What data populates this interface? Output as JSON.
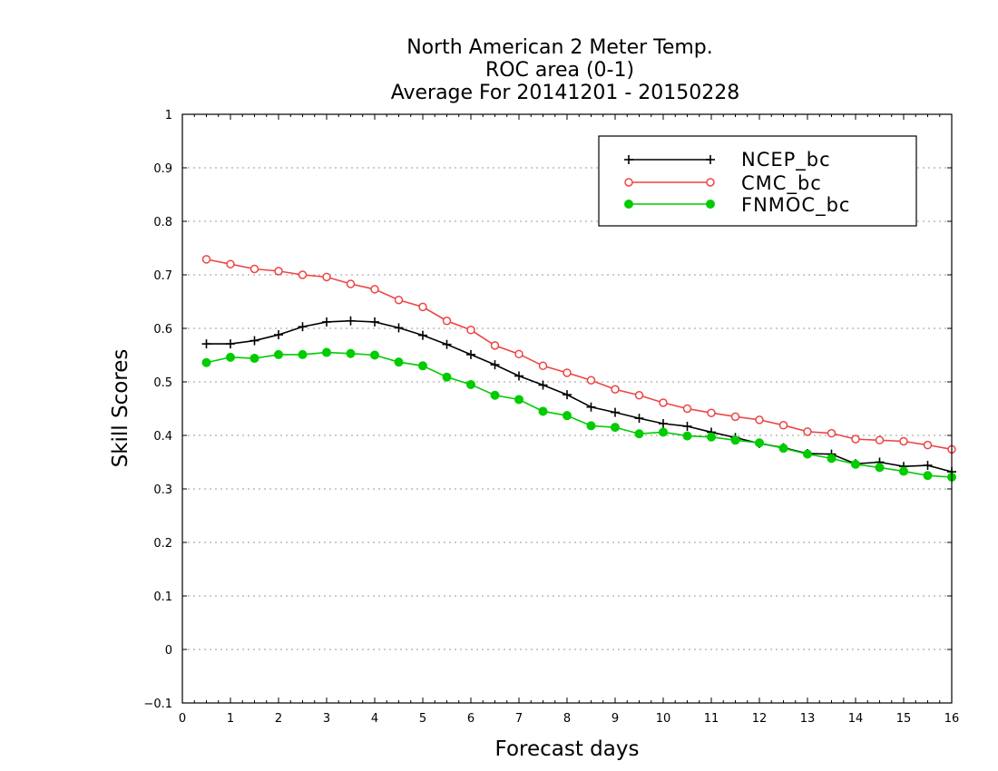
{
  "chart_data": {
    "type": "line",
    "title_lines": [
      "North American 2 Meter Temp.",
      "ROC area (0-1)",
      "Average For 20141201 - 20150228"
    ],
    "xlabel": "Forecast days",
    "ylabel": "Skill Scores",
    "xlim": [
      0,
      16
    ],
    "ylim": [
      -0.1,
      1
    ],
    "xticks": [
      "0",
      "1",
      "2",
      "3",
      "4",
      "5",
      "6",
      "7",
      "8",
      "9",
      "10",
      "11",
      "12",
      "13",
      "14",
      "15",
      "16"
    ],
    "yticks": [
      "−0.1",
      "0",
      "0.1",
      "0.2",
      "0.3",
      "0.4",
      "0.5",
      "0.6",
      "0.7",
      "0.8",
      "0.9",
      "1"
    ],
    "grid": "horizontal dotted",
    "legend_position": "top-right",
    "x": [
      0.5,
      1,
      1.5,
      2,
      2.5,
      3,
      3.5,
      4,
      4.5,
      5,
      5.5,
      6,
      6.5,
      7,
      7.5,
      8,
      8.5,
      9,
      9.5,
      10,
      10.5,
      11,
      11.5,
      12,
      12.5,
      13,
      13.5,
      14,
      14.5,
      15,
      15.5,
      16
    ],
    "series": [
      {
        "name": "NCEP_bc",
        "color": "#000000",
        "marker": "plus",
        "values": [
          0.571,
          0.571,
          0.577,
          0.588,
          0.603,
          0.612,
          0.614,
          0.612,
          0.601,
          0.587,
          0.57,
          0.551,
          0.532,
          0.511,
          0.494,
          0.476,
          0.453,
          0.443,
          0.432,
          0.422,
          0.417,
          0.406,
          0.396,
          0.385,
          0.377,
          0.366,
          0.365,
          0.347,
          0.35,
          0.342,
          0.344,
          0.332
        ]
      },
      {
        "name": "CMC_bc",
        "color": "#ee4444",
        "marker": "open-circle",
        "values": [
          0.729,
          0.72,
          0.711,
          0.707,
          0.7,
          0.696,
          0.683,
          0.673,
          0.653,
          0.64,
          0.614,
          0.597,
          0.568,
          0.552,
          0.53,
          0.517,
          0.503,
          0.486,
          0.475,
          0.461,
          0.45,
          0.442,
          0.435,
          0.429,
          0.419,
          0.407,
          0.404,
          0.393,
          0.391,
          0.389,
          0.382,
          0.374
        ]
      },
      {
        "name": "FNMOC_bc",
        "color": "#00cc00",
        "marker": "filled-circle",
        "values": [
          0.536,
          0.546,
          0.544,
          0.551,
          0.551,
          0.555,
          0.553,
          0.55,
          0.537,
          0.53,
          0.509,
          0.495,
          0.475,
          0.467,
          0.445,
          0.437,
          0.418,
          0.415,
          0.403,
          0.406,
          0.399,
          0.397,
          0.391,
          0.386,
          0.376,
          0.365,
          0.357,
          0.346,
          0.34,
          0.333,
          0.325,
          0.322
        ]
      }
    ]
  }
}
